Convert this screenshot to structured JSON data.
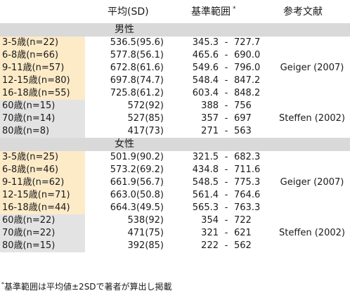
{
  "header": {
    "mean": "平均(SD)",
    "range": "基準範囲",
    "range_mark": "*",
    "ref": "参考文献"
  },
  "sections": [
    {
      "label": "男性",
      "rows": [
        {
          "group": "young",
          "age": "3-5歳(n=22)",
          "mean": "536.5(95.6)",
          "lo": "345.3",
          "hi": "727.7",
          "ref": ""
        },
        {
          "group": "young",
          "age": "6-8歳(n=66)",
          "mean": "577.8(56.1)",
          "lo": "465.6",
          "hi": "690.0",
          "ref": ""
        },
        {
          "group": "young",
          "age": "9-11歳(n=57)",
          "mean": "672.8(61.6)",
          "lo": "549.6",
          "hi": "796.0",
          "ref": "Geiger (2007)"
        },
        {
          "group": "young",
          "age": "12-15歳(n=80)",
          "mean": "697.8(74.7)",
          "lo": "548.4",
          "hi": "847.2",
          "ref": ""
        },
        {
          "group": "young",
          "age": "16-18歳(n=55)",
          "mean": "725.8(61.2)",
          "lo": "603.4",
          "hi": "848.2",
          "ref": ""
        },
        {
          "group": "old",
          "age": "60歳(n=15)",
          "mean": "572(92)",
          "lo": "388",
          "hi": "756",
          "ref": ""
        },
        {
          "group": "old",
          "age": "70歳(n=14)",
          "mean": "527(85)",
          "lo": "357",
          "hi": "697",
          "ref": "Steffen (2002)"
        },
        {
          "group": "old",
          "age": "80歳(n=8)",
          "mean": "417(73)",
          "lo": "271",
          "hi": "563",
          "ref": ""
        }
      ]
    },
    {
      "label": "女性",
      "rows": [
        {
          "group": "young",
          "age": "3-5歳(n=25)",
          "mean": "501.9(90.2)",
          "lo": "321.5",
          "hi": "682.3",
          "ref": ""
        },
        {
          "group": "young",
          "age": "6-8歳(n=46)",
          "mean": "573.2(69.2)",
          "lo": "434.8",
          "hi": "711.6",
          "ref": ""
        },
        {
          "group": "young",
          "age": "9-11歳(n=62)",
          "mean": "661.9(56.7)",
          "lo": "548.5",
          "hi": "775.3",
          "ref": "Geiger (2007)"
        },
        {
          "group": "young",
          "age": "12-15歳(n=71)",
          "mean": "663.0(50.8)",
          "lo": "561.4",
          "hi": "764.6",
          "ref": ""
        },
        {
          "group": "young",
          "age": "16-18歳(n=44)",
          "mean": "664.3(49.5)",
          "lo": "565.3",
          "hi": "763.3",
          "ref": ""
        },
        {
          "group": "old",
          "age": "60歳(n=22)",
          "mean": "538(92)",
          "lo": "354",
          "hi": "722",
          "ref": ""
        },
        {
          "group": "old",
          "age": "70歳(n=22)",
          "mean": "471(75)",
          "lo": "321",
          "hi": "621",
          "ref": "Steffen (2002)"
        },
        {
          "group": "old",
          "age": "80歳(n=15)",
          "mean": "392(85)",
          "lo": "222",
          "hi": "562",
          "ref": ""
        }
      ]
    }
  ],
  "range_separator": "-",
  "footnote": {
    "mark": "*",
    "text": "基準範囲は平均値±2SDで著者が算出し掲載"
  }
}
